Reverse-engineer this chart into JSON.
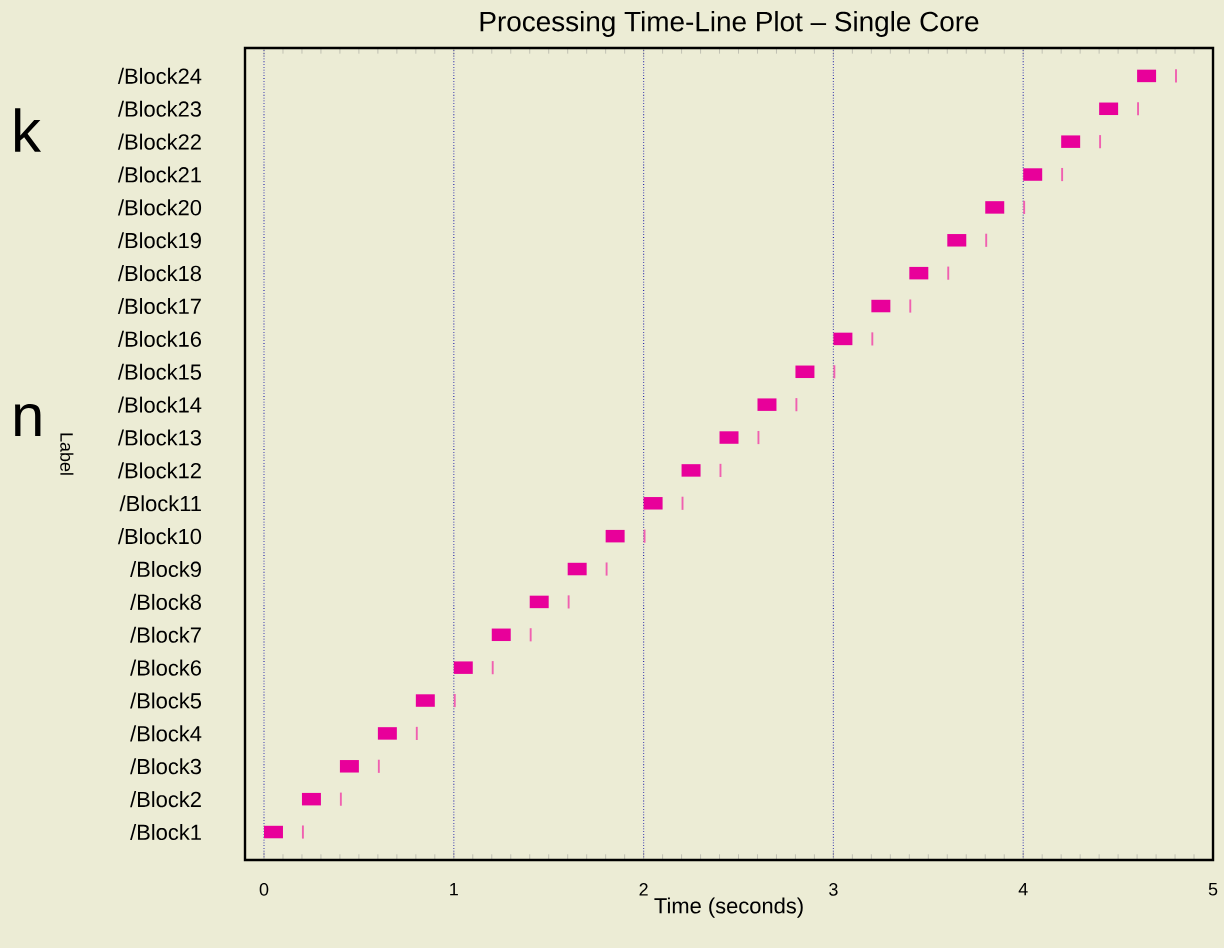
{
  "chart_data": {
    "type": "bar",
    "orientation": "horizontal",
    "title": "Processing Time-Line Plot – Single Core",
    "xlabel": "Time (seconds)",
    "ylabel": "Label",
    "categories": [
      "/Block24",
      "/Block23",
      "/Block22",
      "/Block21",
      "/Block20",
      "/Block19",
      "/Block18",
      "/Block17",
      "/Block16",
      "/Block15",
      "/Block14",
      "/Block13",
      "/Block12",
      "/Block11",
      "/Block10",
      "/Block9",
      "/Block8",
      "/Block7",
      "/Block6",
      "/Block5",
      "/Block4",
      "/Block3",
      "/Block2",
      "/Block1"
    ],
    "series": [
      {
        "color": "#e8009a",
        "base": [
          4.6,
          4.4,
          4.2,
          4.0,
          3.8,
          3.6,
          3.4,
          3.2,
          3.0,
          2.8,
          2.6,
          2.4,
          2.2,
          2.0,
          1.8,
          1.6,
          1.4,
          1.2,
          1.0,
          0.8,
          0.6,
          0.4,
          0.2,
          0.0
        ],
        "values": [
          0.1,
          0.1,
          0.1,
          0.1,
          0.1,
          0.1,
          0.1,
          0.1,
          0.1,
          0.1,
          0.1,
          0.1,
          0.1,
          0.1,
          0.1,
          0.1,
          0.1,
          0.1,
          0.1,
          0.1,
          0.1,
          0.1,
          0.1,
          0.1
        ]
      },
      {
        "color": "#f060b0",
        "base": [
          4.8,
          4.6,
          4.4,
          4.2,
          4.0,
          3.8,
          3.6,
          3.4,
          3.2,
          3.0,
          2.8,
          2.6,
          2.4,
          2.2,
          2.0,
          1.8,
          1.6,
          1.4,
          1.2,
          1.0,
          0.8,
          0.6,
          0.4,
          0.2
        ],
        "values": [
          0.01,
          0.01,
          0.01,
          0.01,
          0.01,
          0.01,
          0.01,
          0.01,
          0.01,
          0.01,
          0.01,
          0.01,
          0.01,
          0.01,
          0.01,
          0.01,
          0.01,
          0.01,
          0.01,
          0.01,
          0.01,
          0.01,
          0.01,
          0.01
        ]
      }
    ],
    "xlim": [
      -0.1,
      5
    ],
    "xticks": [
      0,
      1,
      2,
      3,
      4,
      5
    ],
    "grid": "x",
    "annotations": [
      "k",
      "n"
    ]
  }
}
